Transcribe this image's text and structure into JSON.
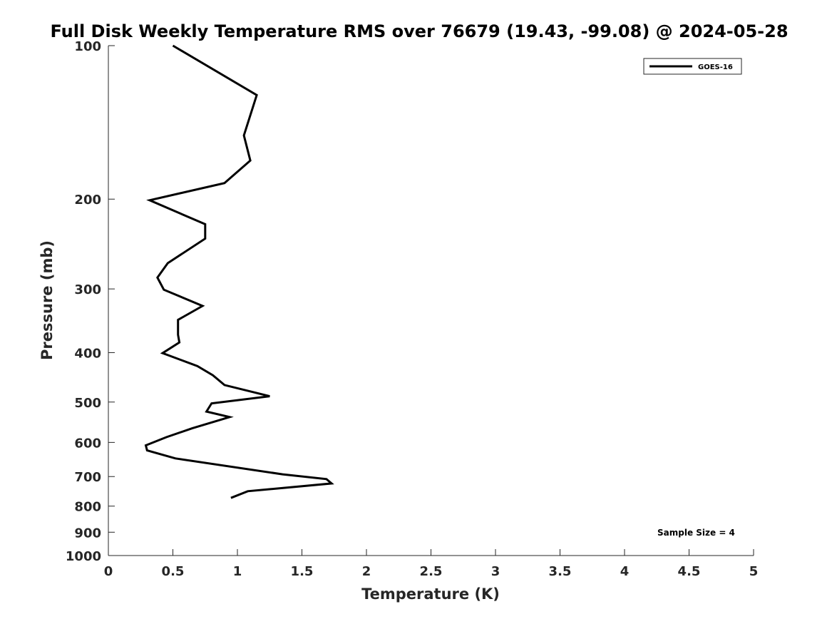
{
  "chart_data": {
    "type": "line",
    "title": "Full Disk Weekly Temperature RMS over 76679 (19.43, -99.08) @ 2024-05-28",
    "xlabel": "Temperature (K)",
    "ylabel": "Pressure (mb)",
    "xlim": [
      0,
      5
    ],
    "ylim": [
      100,
      1000
    ],
    "y_scale": "log",
    "y_reversed": true,
    "x_ticks": [
      0,
      0.5,
      1,
      1.5,
      2,
      2.5,
      3,
      3.5,
      4,
      4.5,
      5
    ],
    "x_tick_labels": [
      "0",
      "0.5",
      "1",
      "1.5",
      "2",
      "2.5",
      "3",
      "3.5",
      "4",
      "4.5",
      "5"
    ],
    "y_ticks": [
      100,
      200,
      300,
      400,
      500,
      600,
      700,
      800,
      900,
      1000
    ],
    "y_tick_labels": [
      "100",
      "200",
      "300",
      "400",
      "500",
      "600",
      "700",
      "800",
      "900",
      "1000"
    ],
    "grid": false,
    "legend_position": "top-right",
    "series": [
      {
        "name": "GOES-16",
        "color": "#000000",
        "points": [
          {
            "t": 0.5,
            "p": 100
          },
          {
            "t": 1.15,
            "p": 125
          },
          {
            "t": 1.05,
            "p": 150
          },
          {
            "t": 1.1,
            "p": 168
          },
          {
            "t": 0.9,
            "p": 186
          },
          {
            "t": 0.32,
            "p": 201
          },
          {
            "t": 0.75,
            "p": 224
          },
          {
            "t": 0.75,
            "p": 239
          },
          {
            "t": 0.46,
            "p": 267
          },
          {
            "t": 0.38,
            "p": 285
          },
          {
            "t": 0.43,
            "p": 301
          },
          {
            "t": 0.73,
            "p": 324
          },
          {
            "t": 0.54,
            "p": 345
          },
          {
            "t": 0.54,
            "p": 369
          },
          {
            "t": 0.55,
            "p": 382
          },
          {
            "t": 0.42,
            "p": 401
          },
          {
            "t": 0.69,
            "p": 425
          },
          {
            "t": 0.81,
            "p": 443
          },
          {
            "t": 0.9,
            "p": 463
          },
          {
            "t": 1.25,
            "p": 487
          },
          {
            "t": 0.8,
            "p": 503
          },
          {
            "t": 0.76,
            "p": 522
          },
          {
            "t": 0.94,
            "p": 535
          },
          {
            "t": 0.65,
            "p": 563
          },
          {
            "t": 0.45,
            "p": 586
          },
          {
            "t": 0.29,
            "p": 608
          },
          {
            "t": 0.3,
            "p": 622
          },
          {
            "t": 0.52,
            "p": 645
          },
          {
            "t": 1.35,
            "p": 693
          },
          {
            "t": 1.69,
            "p": 708
          },
          {
            "t": 1.73,
            "p": 722
          },
          {
            "t": 1.08,
            "p": 748
          },
          {
            "t": 0.95,
            "p": 771
          }
        ]
      }
    ],
    "annotation": "Sample Size = 4"
  }
}
